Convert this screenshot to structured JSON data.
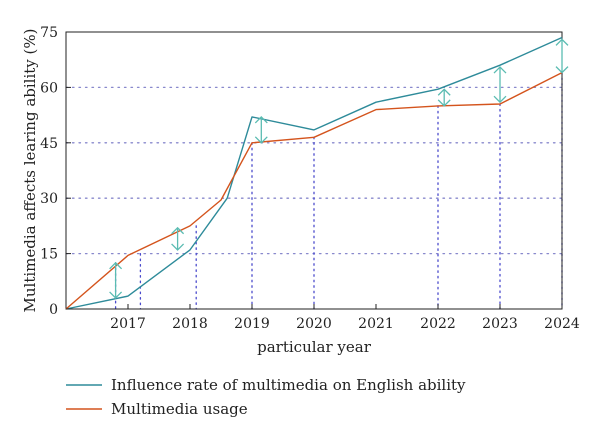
{
  "chart_data": {
    "type": "line",
    "title": "",
    "xlabel": "particular year",
    "ylabel": "Multimedia affects learing ability (%)",
    "x_tick_labels": [
      "2017",
      "2018",
      "2019",
      "2020",
      "2021",
      "2022",
      "2023",
      "2024"
    ],
    "y_tick_labels": [
      "0",
      "15",
      "30",
      "45",
      "60",
      "75"
    ],
    "y_ticks": [
      0,
      15,
      30,
      45,
      60,
      75
    ],
    "xlim": [
      2016.0,
      2024.0
    ],
    "ylim": [
      0,
      75
    ],
    "grid": "dotted",
    "legend_position": "bottom",
    "series": [
      {
        "name": "Influence rate of multimedia on English ability",
        "color": "#2e8b9a",
        "points": [
          [
            2016.0,
            0
          ],
          [
            2017.0,
            3.5
          ],
          [
            2018.0,
            16
          ],
          [
            2018.6,
            30
          ],
          [
            2019.0,
            52
          ],
          [
            2020.0,
            48.5
          ],
          [
            2021.0,
            56
          ],
          [
            2022.0,
            59.5
          ],
          [
            2023.0,
            66
          ],
          [
            2024.0,
            73.5
          ]
        ]
      },
      {
        "name": "Multimedia usage",
        "color": "#d4541d",
        "points": [
          [
            2016.0,
            0
          ],
          [
            2017.0,
            14.5
          ],
          [
            2018.0,
            22.5
          ],
          [
            2018.5,
            29.5
          ],
          [
            2019.0,
            45
          ],
          [
            2020.0,
            46.5
          ],
          [
            2021.0,
            54
          ],
          [
            2022.0,
            55
          ],
          [
            2023.0,
            55.5
          ],
          [
            2024.0,
            64
          ]
        ]
      }
    ],
    "gap_arrows": [
      {
        "x": 2016.8,
        "y_low": 3,
        "y_high": 12.5
      },
      {
        "x": 2017.8,
        "y_low": 16,
        "y_high": 22
      },
      {
        "x": 2019.15,
        "y_low": 45,
        "y_high": 52
      },
      {
        "x": 2022.1,
        "y_low": 55,
        "y_high": 59.5
      },
      {
        "x": 2023.0,
        "y_low": 56,
        "y_high": 65.5
      },
      {
        "x": 2024.0,
        "y_low": 64,
        "y_high": 73
      }
    ],
    "arrow_color": "#5bbcb2",
    "vertical_guides": [
      {
        "x": 2016.8,
        "y": 12.5
      },
      {
        "x": 2017.2,
        "y": 15
      },
      {
        "x": 2018.1,
        "y": 22.5
      },
      {
        "x": 2019.0,
        "y": 45
      },
      {
        "x": 2020.0,
        "y": 46.5
      },
      {
        "x": 2022.0,
        "y": 55
      },
      {
        "x": 2023.0,
        "y": 55.5
      },
      {
        "x": 2024.0,
        "y": 64
      }
    ],
    "guide_color": "#4a4acc",
    "grid_color": "#8888cc"
  }
}
